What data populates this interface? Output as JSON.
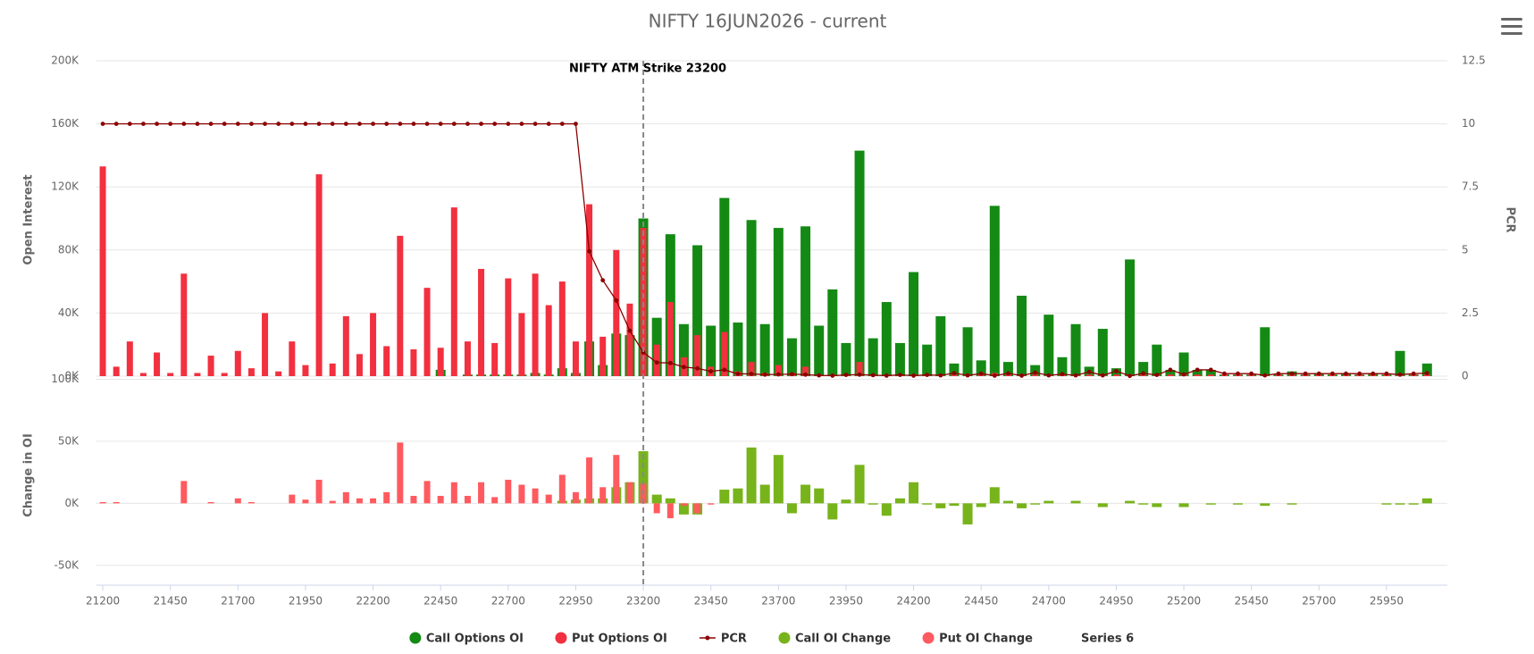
{
  "chart_data": {
    "type": "bar",
    "title": "NIFTY 16JUN2026 - current",
    "x": [
      21200,
      21250,
      21300,
      21350,
      21400,
      21450,
      21500,
      21550,
      21600,
      21650,
      21700,
      21750,
      21800,
      21850,
      21900,
      21950,
      22000,
      22050,
      22100,
      22150,
      22200,
      22250,
      22300,
      22350,
      22400,
      22450,
      22500,
      22550,
      22600,
      22650,
      22700,
      22750,
      22800,
      22850,
      22900,
      22950,
      23000,
      23050,
      23100,
      23150,
      23200,
      23250,
      23300,
      23350,
      23400,
      23450,
      23500,
      23550,
      23600,
      23650,
      23700,
      23750,
      23800,
      23850,
      23900,
      23950,
      24000,
      24050,
      24100,
      24150,
      24200,
      24250,
      24300,
      24350,
      24400,
      24450,
      24500,
      24550,
      24600,
      24650,
      24700,
      24750,
      24800,
      24850,
      24900,
      24950,
      25000,
      25050,
      25100,
      25150,
      25200,
      25250,
      25300,
      25350,
      25400,
      25450,
      25500,
      25550,
      25600,
      25650,
      25700,
      25750,
      25800,
      25850,
      25900,
      25950,
      26000,
      26050,
      26100
    ],
    "xlim": [
      21175,
      26175
    ],
    "xticks": [
      21200,
      21450,
      21700,
      21950,
      22200,
      22450,
      22700,
      22950,
      23200,
      23450,
      23700,
      23950,
      24200,
      24450,
      24700,
      24950,
      25200,
      25450,
      25700,
      25950
    ],
    "ylabel": "Open Interest",
    "ylim": [
      0,
      200000
    ],
    "yticks": [
      {
        "value": 0,
        "label": "0K"
      },
      {
        "value": 40000,
        "label": "40K"
      },
      {
        "value": 80000,
        "label": "80K"
      },
      {
        "value": 120000,
        "label": "120K"
      },
      {
        "value": 160000,
        "label": "160K"
      },
      {
        "value": 200000,
        "label": "200K"
      }
    ],
    "y2label": "PCR",
    "y2lim": [
      0,
      12.5
    ],
    "y2ticks": [
      0,
      2.5,
      5,
      7.5,
      10,
      12.5
    ],
    "y3label": "Change in OI",
    "y3lim": [
      -66000,
      100000
    ],
    "y3ticks": [
      {
        "value": -50000,
        "label": "-50K"
      },
      {
        "value": 0,
        "label": "0K"
      },
      {
        "value": 50000,
        "label": "50K"
      },
      {
        "value": 100000,
        "label": "100K"
      }
    ],
    "grid": true,
    "annotation": {
      "label": "NIFTY ATM Strike 23200",
      "value": 23200
    },
    "series": [
      {
        "name": "Call Options OI",
        "type": "bar",
        "color": "#148a14",
        "values": [
          0,
          0,
          0,
          0,
          0,
          0,
          0,
          0,
          0,
          0,
          0,
          0,
          0,
          0,
          0,
          0,
          0,
          0,
          0,
          0,
          0,
          0,
          0,
          0,
          0,
          4000,
          0,
          1000,
          1000,
          1000,
          1000,
          1000,
          2000,
          1000,
          5000,
          2000,
          22000,
          7000,
          27000,
          26000,
          100000,
          37000,
          90000,
          33000,
          83000,
          32000,
          113000,
          34000,
          99000,
          33000,
          94000,
          24000,
          95000,
          32000,
          55000,
          21000,
          143000,
          24000,
          47000,
          21000,
          66000,
          20000,
          38000,
          8000,
          31000,
          10000,
          108000,
          9000,
          51000,
          7000,
          39000,
          12000,
          33000,
          6000,
          30000,
          5000,
          74000,
          9000,
          20000,
          4000,
          15000,
          4000,
          4000,
          1000,
          1000,
          1000,
          31000,
          1000,
          3000,
          1000,
          2000,
          1000,
          2000,
          1000,
          2000,
          1000,
          16000,
          1000,
          8000
        ]
      },
      {
        "name": "Put Options OI",
        "type": "bar",
        "color": "#f2303f",
        "values": [
          133000,
          6000,
          22000,
          2000,
          15000,
          2000,
          65000,
          2000,
          13000,
          2000,
          16000,
          5000,
          40000,
          3000,
          22000,
          7000,
          128000,
          8000,
          38000,
          14000,
          40000,
          19000,
          89000,
          17000,
          56000,
          18000,
          107000,
          22000,
          68000,
          21000,
          62000,
          40000,
          65000,
          45000,
          60000,
          22000,
          109000,
          25000,
          80000,
          46000,
          94000,
          20000,
          47000,
          12000,
          26000,
          6000,
          28000,
          3000,
          9000,
          2000,
          7000,
          2000,
          6000,
          1000,
          1000,
          1000,
          9000,
          1000,
          1000,
          1000,
          1000,
          1000,
          1000,
          1000,
          1000,
          1000,
          2000,
          1000,
          1000,
          1000,
          1000,
          1000,
          1000,
          1000,
          1000,
          1000,
          1000,
          1000,
          1000,
          1000,
          1000,
          1000,
          1000,
          1000,
          1000,
          1000,
          1000,
          1000,
          1000,
          1000,
          1000,
          1000,
          1000,
          1000,
          1000,
          1000,
          1000,
          1000,
          1000
        ]
      },
      {
        "name": "PCR",
        "type": "line",
        "axis": "y2",
        "color": "#8b0000",
        "values": [
          10,
          10,
          10,
          10,
          10,
          10,
          10,
          10,
          10,
          10,
          10,
          10,
          10,
          10,
          10,
          10,
          10,
          10,
          10,
          10,
          10,
          10,
          10,
          10,
          10,
          10,
          10,
          10,
          10,
          10,
          10,
          10,
          10,
          10,
          10,
          10,
          4.95,
          3.8,
          3.0,
          1.8,
          0.94,
          0.54,
          0.52,
          0.36,
          0.31,
          0.19,
          0.25,
          0.09,
          0.09,
          0.06,
          0.07,
          0.08,
          0.06,
          0.03,
          0.02,
          0.05,
          0.06,
          0.04,
          0.02,
          0.05,
          0.02,
          0.05,
          0.03,
          0.12,
          0.03,
          0.1,
          0.02,
          0.11,
          0.02,
          0.14,
          0.03,
          0.08,
          0.03,
          0.17,
          0.03,
          0.2,
          0.01,
          0.11,
          0.05,
          0.25,
          0.07,
          0.25,
          0.25,
          0.1,
          0.1,
          0.1,
          0.03,
          0.1,
          0.1,
          0.1,
          0.1,
          0.1,
          0.1,
          0.1,
          0.1,
          0.1,
          0.06,
          0.1,
          0.12
        ]
      },
      {
        "name": "Call OI Change",
        "type": "bar",
        "axis": "y3",
        "color": "#77b31a",
        "values": [
          0,
          0,
          0,
          0,
          0,
          0,
          0,
          0,
          0,
          0,
          0,
          0,
          0,
          0,
          0,
          0,
          0,
          0,
          0,
          0,
          0,
          0,
          0,
          0,
          0,
          0,
          0,
          0,
          0,
          0,
          0,
          0,
          0,
          0,
          2000,
          3000,
          4000,
          4000,
          13000,
          17000,
          42000,
          7000,
          4000,
          -9000,
          -9000,
          0,
          11000,
          12000,
          45000,
          15000,
          39000,
          -8000,
          15000,
          12000,
          -13000,
          3000,
          31000,
          -1000,
          -10000,
          4000,
          17000,
          -1000,
          -4000,
          -2000,
          -17000,
          -3000,
          13000,
          2000,
          -4000,
          -1000,
          2000,
          0,
          2000,
          0,
          -3000,
          0,
          2000,
          -1000,
          -3000,
          0,
          -3000,
          0,
          -1000,
          0,
          -1000,
          0,
          -2000,
          0,
          -1000,
          0,
          0,
          0,
          0,
          0,
          0,
          -1000,
          -1000,
          -1000,
          4000
        ]
      },
      {
        "name": "Put OI Change",
        "type": "bar",
        "axis": "y3",
        "color": "#ff5a5f",
        "values": [
          1000,
          1000,
          0,
          0,
          0,
          0,
          18000,
          0,
          1000,
          0,
          4000,
          1000,
          0,
          0,
          7000,
          3000,
          19000,
          2000,
          9000,
          4000,
          4000,
          9000,
          49000,
          6000,
          18000,
          6000,
          17000,
          6000,
          17000,
          5000,
          19000,
          15000,
          12000,
          7000,
          23000,
          9000,
          37000,
          13000,
          39000,
          17000,
          16000,
          -8000,
          -12000,
          -2000,
          -8000,
          -1000,
          0,
          0,
          0,
          0,
          0,
          0,
          0,
          0,
          0,
          0,
          0,
          0,
          0,
          0,
          0,
          0,
          0,
          0,
          0,
          0,
          0,
          0,
          0,
          0,
          0,
          0,
          0,
          0,
          0,
          0,
          0,
          0,
          0,
          0,
          0,
          0,
          0,
          0,
          0,
          0,
          0,
          0,
          0,
          0,
          0,
          0,
          0,
          0,
          0,
          0,
          0,
          0,
          0
        ]
      },
      {
        "name": "Series 6"
      }
    ]
  }
}
